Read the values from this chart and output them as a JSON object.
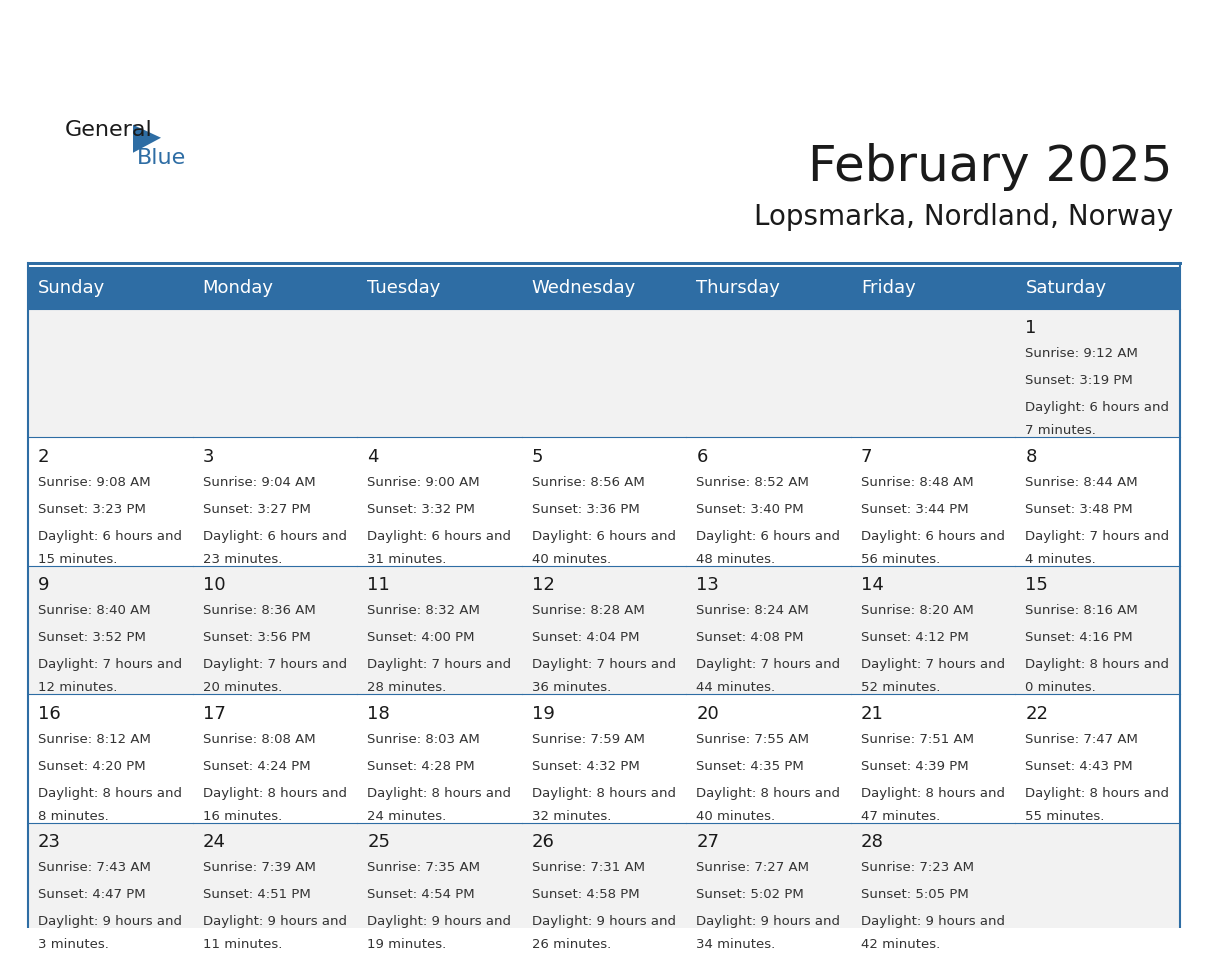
{
  "title": "February 2025",
  "subtitle": "Lopsmarka, Nordland, Norway",
  "header_bg": "#2E6DA4",
  "header_text": "#FFFFFF",
  "cell_bg_odd": "#F2F2F2",
  "cell_bg_even": "#FFFFFF",
  "border_color": "#2E6DA4",
  "day_names": [
    "Sunday",
    "Monday",
    "Tuesday",
    "Wednesday",
    "Thursday",
    "Friday",
    "Saturday"
  ],
  "days": [
    {
      "day": 1,
      "col": 6,
      "row": 0,
      "sunrise": "9:12 AM",
      "sunset": "3:19 PM",
      "daylight": "6 hours and 7 minutes"
    },
    {
      "day": 2,
      "col": 0,
      "row": 1,
      "sunrise": "9:08 AM",
      "sunset": "3:23 PM",
      "daylight": "6 hours and 15 minutes"
    },
    {
      "day": 3,
      "col": 1,
      "row": 1,
      "sunrise": "9:04 AM",
      "sunset": "3:27 PM",
      "daylight": "6 hours and 23 minutes"
    },
    {
      "day": 4,
      "col": 2,
      "row": 1,
      "sunrise": "9:00 AM",
      "sunset": "3:32 PM",
      "daylight": "6 hours and 31 minutes"
    },
    {
      "day": 5,
      "col": 3,
      "row": 1,
      "sunrise": "8:56 AM",
      "sunset": "3:36 PM",
      "daylight": "6 hours and 40 minutes"
    },
    {
      "day": 6,
      "col": 4,
      "row": 1,
      "sunrise": "8:52 AM",
      "sunset": "3:40 PM",
      "daylight": "6 hours and 48 minutes"
    },
    {
      "day": 7,
      "col": 5,
      "row": 1,
      "sunrise": "8:48 AM",
      "sunset": "3:44 PM",
      "daylight": "6 hours and 56 minutes"
    },
    {
      "day": 8,
      "col": 6,
      "row": 1,
      "sunrise": "8:44 AM",
      "sunset": "3:48 PM",
      "daylight": "7 hours and 4 minutes"
    },
    {
      "day": 9,
      "col": 0,
      "row": 2,
      "sunrise": "8:40 AM",
      "sunset": "3:52 PM",
      "daylight": "7 hours and 12 minutes"
    },
    {
      "day": 10,
      "col": 1,
      "row": 2,
      "sunrise": "8:36 AM",
      "sunset": "3:56 PM",
      "daylight": "7 hours and 20 minutes"
    },
    {
      "day": 11,
      "col": 2,
      "row": 2,
      "sunrise": "8:32 AM",
      "sunset": "4:00 PM",
      "daylight": "7 hours and 28 minutes"
    },
    {
      "day": 12,
      "col": 3,
      "row": 2,
      "sunrise": "8:28 AM",
      "sunset": "4:04 PM",
      "daylight": "7 hours and 36 minutes"
    },
    {
      "day": 13,
      "col": 4,
      "row": 2,
      "sunrise": "8:24 AM",
      "sunset": "4:08 PM",
      "daylight": "7 hours and 44 minutes"
    },
    {
      "day": 14,
      "col": 5,
      "row": 2,
      "sunrise": "8:20 AM",
      "sunset": "4:12 PM",
      "daylight": "7 hours and 52 minutes"
    },
    {
      "day": 15,
      "col": 6,
      "row": 2,
      "sunrise": "8:16 AM",
      "sunset": "4:16 PM",
      "daylight": "8 hours and 0 minutes"
    },
    {
      "day": 16,
      "col": 0,
      "row": 3,
      "sunrise": "8:12 AM",
      "sunset": "4:20 PM",
      "daylight": "8 hours and 8 minutes"
    },
    {
      "day": 17,
      "col": 1,
      "row": 3,
      "sunrise": "8:08 AM",
      "sunset": "4:24 PM",
      "daylight": "8 hours and 16 minutes"
    },
    {
      "day": 18,
      "col": 2,
      "row": 3,
      "sunrise": "8:03 AM",
      "sunset": "4:28 PM",
      "daylight": "8 hours and 24 minutes"
    },
    {
      "day": 19,
      "col": 3,
      "row": 3,
      "sunrise": "7:59 AM",
      "sunset": "4:32 PM",
      "daylight": "8 hours and 32 minutes"
    },
    {
      "day": 20,
      "col": 4,
      "row": 3,
      "sunrise": "7:55 AM",
      "sunset": "4:35 PM",
      "daylight": "8 hours and 40 minutes"
    },
    {
      "day": 21,
      "col": 5,
      "row": 3,
      "sunrise": "7:51 AM",
      "sunset": "4:39 PM",
      "daylight": "8 hours and 47 minutes"
    },
    {
      "day": 22,
      "col": 6,
      "row": 3,
      "sunrise": "7:47 AM",
      "sunset": "4:43 PM",
      "daylight": "8 hours and 55 minutes"
    },
    {
      "day": 23,
      "col": 0,
      "row": 4,
      "sunrise": "7:43 AM",
      "sunset": "4:47 PM",
      "daylight": "9 hours and 3 minutes"
    },
    {
      "day": 24,
      "col": 1,
      "row": 4,
      "sunrise": "7:39 AM",
      "sunset": "4:51 PM",
      "daylight": "9 hours and 11 minutes"
    },
    {
      "day": 25,
      "col": 2,
      "row": 4,
      "sunrise": "7:35 AM",
      "sunset": "4:54 PM",
      "daylight": "9 hours and 19 minutes"
    },
    {
      "day": 26,
      "col": 3,
      "row": 4,
      "sunrise": "7:31 AM",
      "sunset": "4:58 PM",
      "daylight": "9 hours and 26 minutes"
    },
    {
      "day": 27,
      "col": 4,
      "row": 4,
      "sunrise": "7:27 AM",
      "sunset": "5:02 PM",
      "daylight": "9 hours and 34 minutes"
    },
    {
      "day": 28,
      "col": 5,
      "row": 4,
      "sunrise": "7:23 AM",
      "sunset": "5:05 PM",
      "daylight": "9 hours and 42 minutes"
    }
  ],
  "logo_general_color": "#1a1a1a",
  "logo_blue_color": "#2E6DA4",
  "title_fontsize": 36,
  "subtitle_fontsize": 20,
  "header_fontsize": 13,
  "day_num_fontsize": 13,
  "cell_text_fontsize": 9.5
}
